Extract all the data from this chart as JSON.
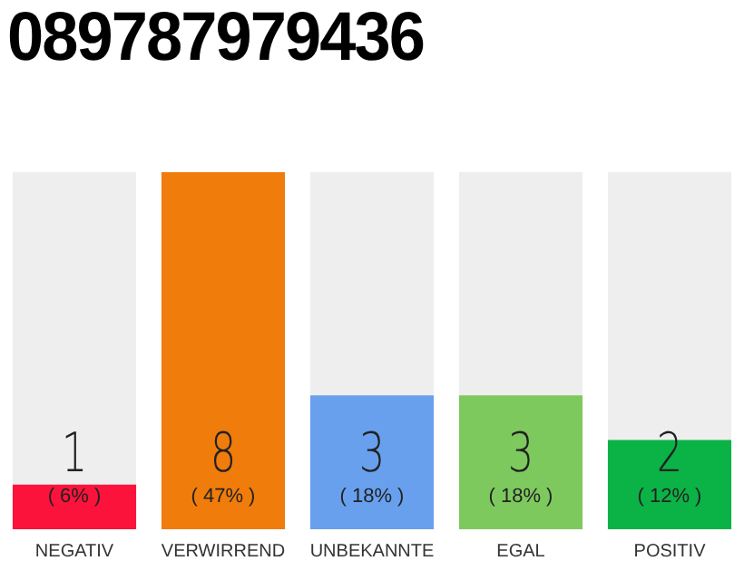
{
  "chart_data": {
    "type": "bar",
    "title": "089787979436",
    "categories": [
      "NEGATIV",
      "VERWIRREND",
      "UNBEKANNTE",
      "EGAL",
      "POSITIV"
    ],
    "values": [
      1,
      8,
      3,
      3,
      2
    ],
    "colors": [
      "#fb133b",
      "#f07c0b",
      "#68a0ee",
      "#7ec95e",
      "#0bb246"
    ],
    "annotations": [
      "( 6% )",
      "( 47% )",
      "( 18% )",
      "( 18% )",
      "( 12% )"
    ],
    "data_labels": true,
    "tick_labels": "x",
    "grid": false,
    "legend": false
  }
}
